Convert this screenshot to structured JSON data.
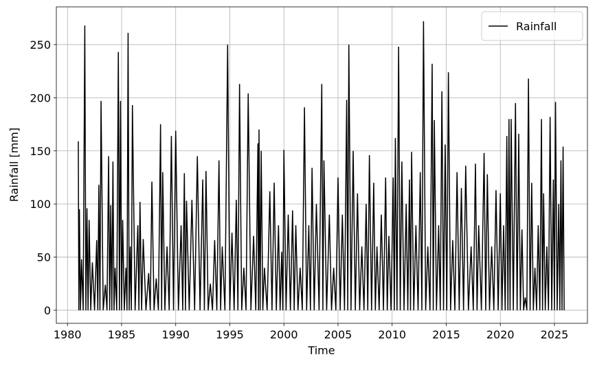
{
  "chart_data": {
    "type": "line",
    "xlabel": "Time",
    "ylabel": "Rainfall [mm]",
    "xlim": [
      1978.97,
      2028.05
    ],
    "ylim": [
      -12.3,
      285.5
    ],
    "xticks": [
      1980,
      1985,
      1990,
      1995,
      2000,
      2005,
      2010,
      2015,
      2020,
      2025
    ],
    "yticks": [
      0,
      50,
      100,
      150,
      200,
      250
    ],
    "grid": true,
    "legend": "upper right",
    "x": [
      1981.0,
      1981.05,
      1981.1,
      1981.2,
      1981.3,
      1981.45,
      1981.6,
      1981.7,
      1981.8,
      1981.9,
      1982.0,
      1982.15,
      1982.3,
      1982.5,
      1982.7,
      1982.8,
      1982.9,
      1983.0,
      1983.1,
      1983.3,
      1983.5,
      1983.65,
      1983.8,
      1983.9,
      1984.0,
      1984.1,
      1984.2,
      1984.3,
      1984.4,
      1984.55,
      1984.7,
      1984.8,
      1984.9,
      1985.0,
      1985.1,
      1985.25,
      1985.4,
      1985.5,
      1985.6,
      1985.7,
      1985.8,
      1985.9,
      1986.0,
      1986.25,
      1986.5,
      1986.6,
      1986.7,
      1986.85,
      1987.0,
      1987.25,
      1987.5,
      1987.65,
      1987.8,
      1988.0,
      1988.2,
      1988.4,
      1988.6,
      1988.7,
      1988.8,
      1989.0,
      1989.2,
      1989.4,
      1989.6,
      1989.8,
      1990.0,
      1990.25,
      1990.5,
      1990.65,
      1990.8,
      1990.9,
      1991.0,
      1991.25,
      1991.5,
      1991.75,
      1992.0,
      1992.25,
      1992.5,
      1992.65,
      1992.8,
      1993.0,
      1993.2,
      1993.4,
      1993.6,
      1993.8,
      1994.0,
      1994.15,
      1994.3,
      1994.55,
      1994.8,
      1995.0,
      1995.2,
      1995.4,
      1995.6,
      1995.75,
      1995.9,
      1996.1,
      1996.3,
      1996.5,
      1996.7,
      1996.95,
      1997.2,
      1997.4,
      1997.6,
      1997.65,
      1997.7,
      1997.8,
      1997.9,
      1998.05,
      1998.2,
      1998.45,
      1998.7,
      1998.9,
      1999.1,
      1999.3,
      1999.5,
      1999.65,
      1999.8,
      1999.9,
      2000.0,
      2000.2,
      2000.4,
      2000.6,
      2000.8,
      2000.95,
      2001.1,
      2001.3,
      2001.5,
      2001.7,
      2001.9,
      2002.1,
      2002.3,
      2002.45,
      2002.6,
      2002.8,
      2003.0,
      2003.25,
      2003.5,
      2003.6,
      2003.7,
      2003.95,
      2004.2,
      2004.4,
      2004.6,
      2004.8,
      2005.0,
      2005.2,
      2005.4,
      2005.6,
      2005.8,
      2005.9,
      2006.0,
      2006.2,
      2006.4,
      2006.6,
      2006.8,
      2007.0,
      2007.2,
      2007.4,
      2007.6,
      2007.75,
      2007.9,
      2008.1,
      2008.3,
      2008.45,
      2008.6,
      2008.8,
      2009.0,
      2009.2,
      2009.4,
      2009.55,
      2009.7,
      2009.9,
      2010.1,
      2010.2,
      2010.3,
      2010.45,
      2010.6,
      2010.75,
      2010.9,
      2011.1,
      2011.3,
      2011.45,
      2011.6,
      2011.7,
      2011.8,
      2012.0,
      2012.2,
      2012.4,
      2012.6,
      2012.75,
      2012.9,
      2013.1,
      2013.3,
      2013.5,
      2013.7,
      2013.8,
      2013.9,
      2014.1,
      2014.3,
      2014.45,
      2014.6,
      2014.75,
      2014.9,
      2015.05,
      2015.2,
      2015.4,
      2015.6,
      2015.8,
      2016.0,
      2016.2,
      2016.4,
      2016.6,
      2016.8,
      2017.05,
      2017.3,
      2017.5,
      2017.7,
      2017.85,
      2018.0,
      2018.25,
      2018.5,
      2018.65,
      2018.8,
      2019.0,
      2019.2,
      2019.4,
      2019.6,
      2019.8,
      2020.0,
      2020.15,
      2020.3,
      2020.45,
      2020.6,
      2020.7,
      2020.8,
      2020.9,
      2021.0,
      2021.2,
      2021.4,
      2021.55,
      2021.7,
      2021.85,
      2022.0,
      2022.15,
      2022.3,
      2022.45,
      2022.6,
      2022.75,
      2022.9,
      2023.05,
      2023.2,
      2023.35,
      2023.5,
      2023.65,
      2023.8,
      2023.9,
      2024.0,
      2024.15,
      2024.3,
      2024.45,
      2024.6,
      2024.75,
      2024.9,
      2025.0,
      2025.1,
      2025.25,
      2025.4,
      2025.5,
      2025.6,
      2025.7,
      2025.8,
      2025.9
    ],
    "series": [
      {
        "name": "Rainfall",
        "color": "#000000",
        "values": [
          159,
          0,
          95,
          0,
          48,
          0,
          268,
          0,
          96,
          0,
          85,
          0,
          45,
          0,
          66,
          0,
          118,
          0,
          197,
          0,
          24,
          0,
          145,
          0,
          99,
          0,
          140,
          0,
          40,
          0,
          243,
          0,
          197,
          0,
          85,
          0,
          40,
          0,
          261,
          0,
          60,
          0,
          193,
          0,
          80,
          0,
          102,
          0,
          67,
          0,
          35,
          0,
          121,
          0,
          30,
          0,
          175,
          0,
          130,
          0,
          60,
          0,
          164,
          0,
          169,
          0,
          80,
          0,
          129,
          0,
          103,
          0,
          104,
          0,
          145,
          0,
          123,
          0,
          131,
          0,
          25,
          0,
          66,
          0,
          141,
          0,
          60,
          0,
          250,
          0,
          73,
          0,
          104,
          0,
          213,
          0,
          40,
          0,
          204,
          0,
          70,
          0,
          157,
          0,
          170,
          0,
          150,
          0,
          40,
          0,
          112,
          0,
          120,
          0,
          80,
          0,
          55,
          0,
          151,
          0,
          90,
          0,
          94,
          0,
          80,
          0,
          40,
          0,
          191,
          0,
          80,
          0,
          134,
          0,
          100,
          0,
          213,
          0,
          141,
          0,
          90,
          0,
          40,
          0,
          125,
          0,
          90,
          0,
          198,
          0,
          250,
          0,
          150,
          0,
          110,
          0,
          60,
          0,
          100,
          0,
          146,
          0,
          120,
          0,
          60,
          0,
          90,
          0,
          125,
          0,
          70,
          0,
          125,
          0,
          162,
          0,
          248,
          0,
          140,
          0,
          100,
          0,
          123,
          0,
          149,
          0,
          80,
          0,
          130,
          0,
          272,
          0,
          60,
          0,
          232,
          0,
          179,
          0,
          80,
          0,
          206,
          0,
          156,
          0,
          224,
          0,
          66,
          0,
          130,
          0,
          115,
          0,
          136,
          0,
          60,
          0,
          138,
          0,
          80,
          0,
          148,
          0,
          128,
          0,
          60,
          0,
          113,
          0,
          110,
          0,
          80,
          0,
          164,
          0,
          180,
          0,
          180,
          0,
          195,
          0,
          166,
          0,
          76,
          0,
          12,
          0,
          218,
          0,
          120,
          0,
          40,
          0,
          80,
          0,
          180,
          0,
          110,
          0,
          60,
          0,
          182,
          0,
          123,
          0,
          196,
          0,
          100,
          0,
          141,
          0,
          154,
          0
        ]
      }
    ]
  }
}
